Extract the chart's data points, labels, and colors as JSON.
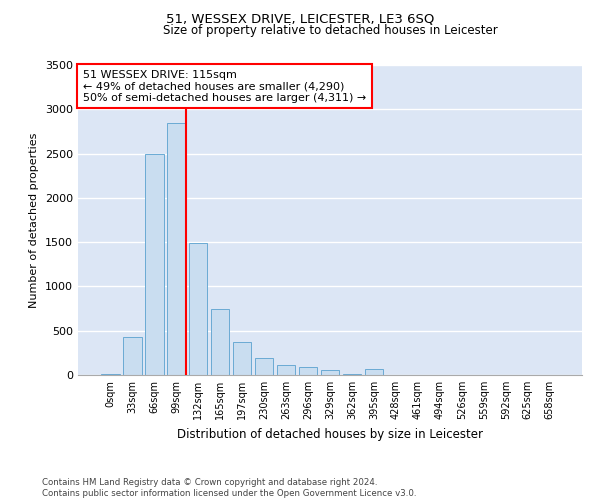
{
  "title": "51, WESSEX DRIVE, LEICESTER, LE3 6SQ",
  "subtitle": "Size of property relative to detached houses in Leicester",
  "xlabel": "Distribution of detached houses by size in Leicester",
  "ylabel": "Number of detached properties",
  "bar_color": "#c9ddf0",
  "bar_edge_color": "#6aaad4",
  "background_color": "#dce6f5",
  "categories": [
    "0sqm",
    "33sqm",
    "66sqm",
    "99sqm",
    "132sqm",
    "165sqm",
    "197sqm",
    "230sqm",
    "263sqm",
    "296sqm",
    "329sqm",
    "362sqm",
    "395sqm",
    "428sqm",
    "461sqm",
    "494sqm",
    "526sqm",
    "559sqm",
    "592sqm",
    "625sqm",
    "658sqm"
  ],
  "values": [
    8,
    430,
    2500,
    2850,
    1490,
    740,
    370,
    195,
    115,
    90,
    55,
    8,
    65,
    4,
    4,
    4,
    4,
    4,
    4,
    4,
    4
  ],
  "ylim": [
    0,
    3500
  ],
  "yticks": [
    0,
    500,
    1000,
    1500,
    2000,
    2500,
    3000,
    3500
  ],
  "vline_bin": 3,
  "annotation_text": "51 WESSEX DRIVE: 115sqm\n← 49% of detached houses are smaller (4,290)\n50% of semi-detached houses are larger (4,311) →",
  "footer_line1": "Contains HM Land Registry data © Crown copyright and database right 2024.",
  "footer_line2": "Contains public sector information licensed under the Open Government Licence v3.0."
}
